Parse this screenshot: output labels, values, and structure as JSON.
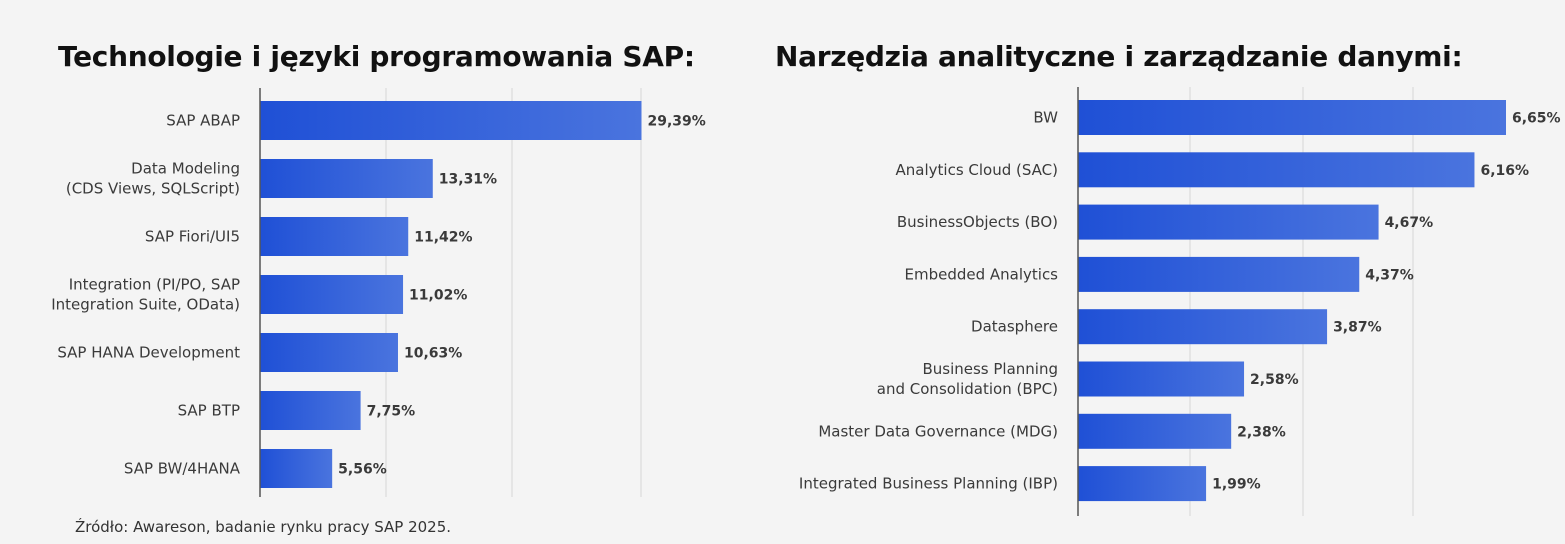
{
  "colors": {
    "bar_start": "#1f50d6",
    "bar_end": "#4a74de",
    "axis": "#555555",
    "grid": "#d6d6d6"
  },
  "source": "Źródło: Awareson, badanie rynku pracy SAP 2025.",
  "chart_data": [
    {
      "type": "bar",
      "orientation": "horizontal",
      "title": "Technologie i języki programowania SAP:",
      "categories": [
        [
          "SAP ABAP"
        ],
        [
          "Data Modeling",
          "(CDS Views, SQLScript)"
        ],
        [
          "SAP Fiori/UI5"
        ],
        [
          "Integration (PI/PO, SAP",
          "Integration Suite, OData)"
        ],
        [
          "SAP HANA Development"
        ],
        [
          "SAP BTP"
        ],
        [
          "SAP BW/4HANA"
        ]
      ],
      "values": [
        29.39,
        13.31,
        11.42,
        11.02,
        10.63,
        7.75,
        5.56
      ],
      "value_labels": [
        "29,39%",
        "13,31%",
        "11,42%",
        "11,02%",
        "10,63%",
        "7,75%",
        "5,56%"
      ],
      "xlim": [
        0,
        30
      ],
      "grid": true,
      "unit": "%"
    },
    {
      "type": "bar",
      "orientation": "horizontal",
      "title": "Narzędzia analityczne i zarządzanie danymi:",
      "categories": [
        [
          "BW"
        ],
        [
          "Analytics Cloud (SAC)"
        ],
        [
          "BusinessObjects (BO)"
        ],
        [
          "Embedded Analytics"
        ],
        [
          "Datasphere"
        ],
        [
          "Business Planning",
          "and Consolidation (BPC)"
        ],
        [
          "Master Data Governance (MDG)"
        ],
        [
          "Integrated Business Planning (IBP)"
        ]
      ],
      "values": [
        6.65,
        6.16,
        4.67,
        4.37,
        3.87,
        2.58,
        2.38,
        1.99
      ],
      "value_labels": [
        "6,65%",
        "6,16%",
        "4,67%",
        "4,37%",
        "3,87%",
        "2,58%",
        "2,38%",
        "1,99%"
      ],
      "xlim": [
        0,
        6.65
      ],
      "grid": true,
      "unit": "%"
    }
  ]
}
